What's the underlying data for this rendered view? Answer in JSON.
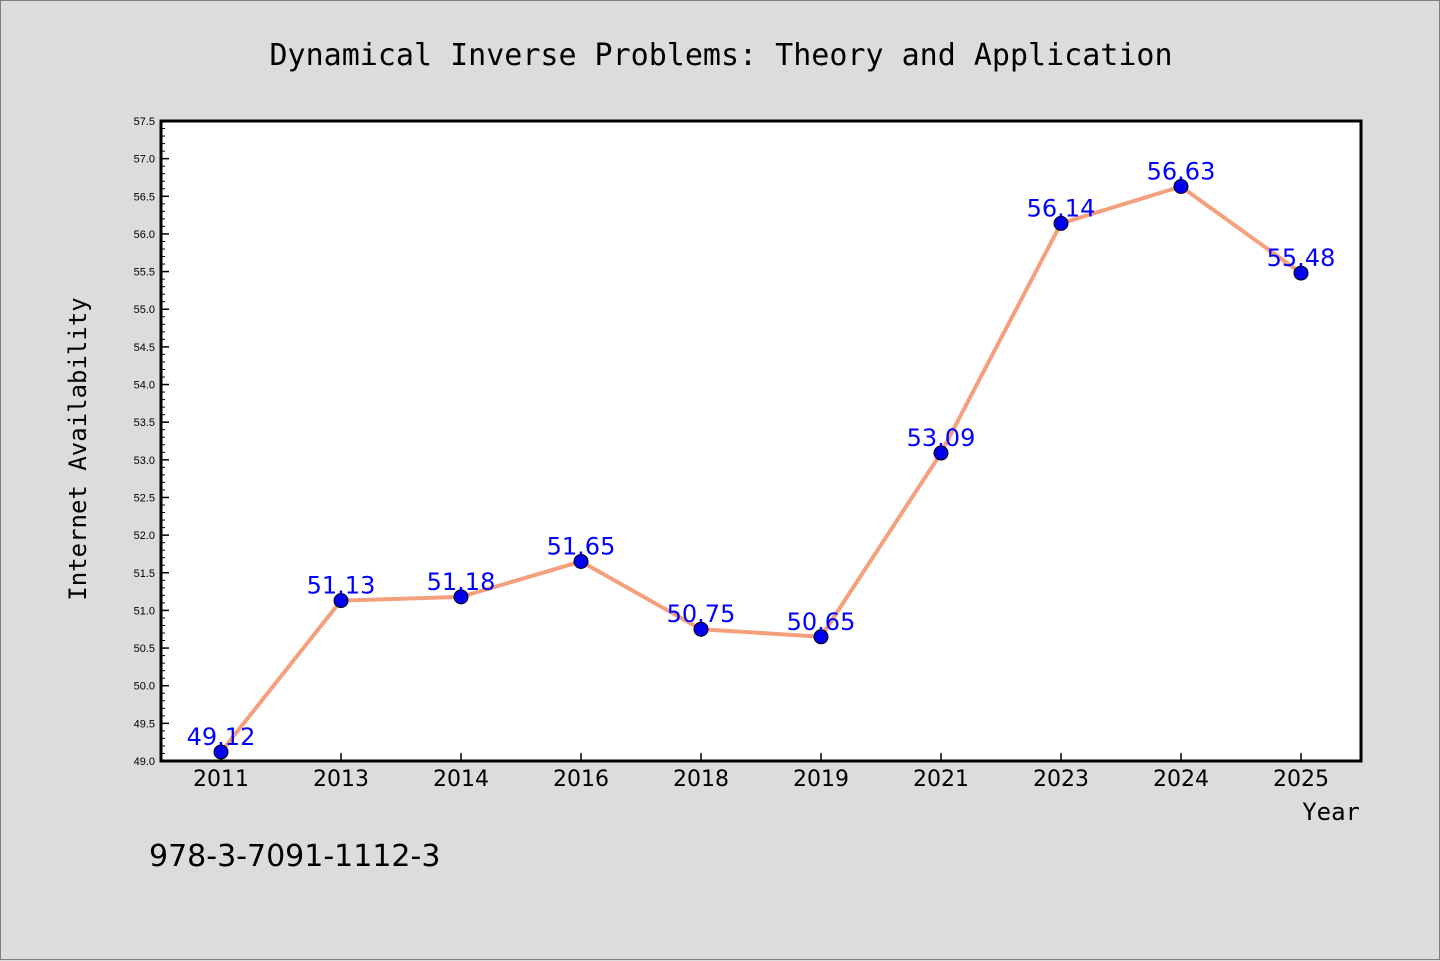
{
  "chart_data": {
    "type": "line",
    "title": "Dynamical Inverse Problems: Theory and Application",
    "xlabel": "Year",
    "ylabel": "Internet Availability",
    "categories": [
      "2011",
      "2013",
      "2014",
      "2016",
      "2018",
      "2019",
      "2021",
      "2023",
      "2024",
      "2025"
    ],
    "series": [
      {
        "values": [
          49.12,
          51.13,
          51.18,
          51.65,
          50.75,
          50.65,
          53.09,
          56.14,
          56.63,
          55.48
        ],
        "labels": [
          "49.12",
          "51.13",
          "51.18",
          "51.65",
          "50.75",
          "50.65",
          "53.09",
          "56.14",
          "56.63",
          "55.48"
        ],
        "line_color": "#f4a07c",
        "marker_color": "#0000ee"
      }
    ],
    "ylim": [
      49.0,
      57.5
    ],
    "yticks": [
      "49.0",
      "49.5",
      "50.0",
      "50.5",
      "51.0",
      "51.5",
      "52.0",
      "52.5",
      "53.0",
      "53.5",
      "54.0",
      "54.5",
      "55.0",
      "55.5",
      "56.0",
      "56.5",
      "57.0",
      "57.5"
    ],
    "grid": false,
    "label_color": "#0000ff",
    "background_color": "#dcdcdc",
    "plot_background": "#ffffff"
  },
  "footer": {
    "isbn": "978-3-7091-1112-3"
  }
}
